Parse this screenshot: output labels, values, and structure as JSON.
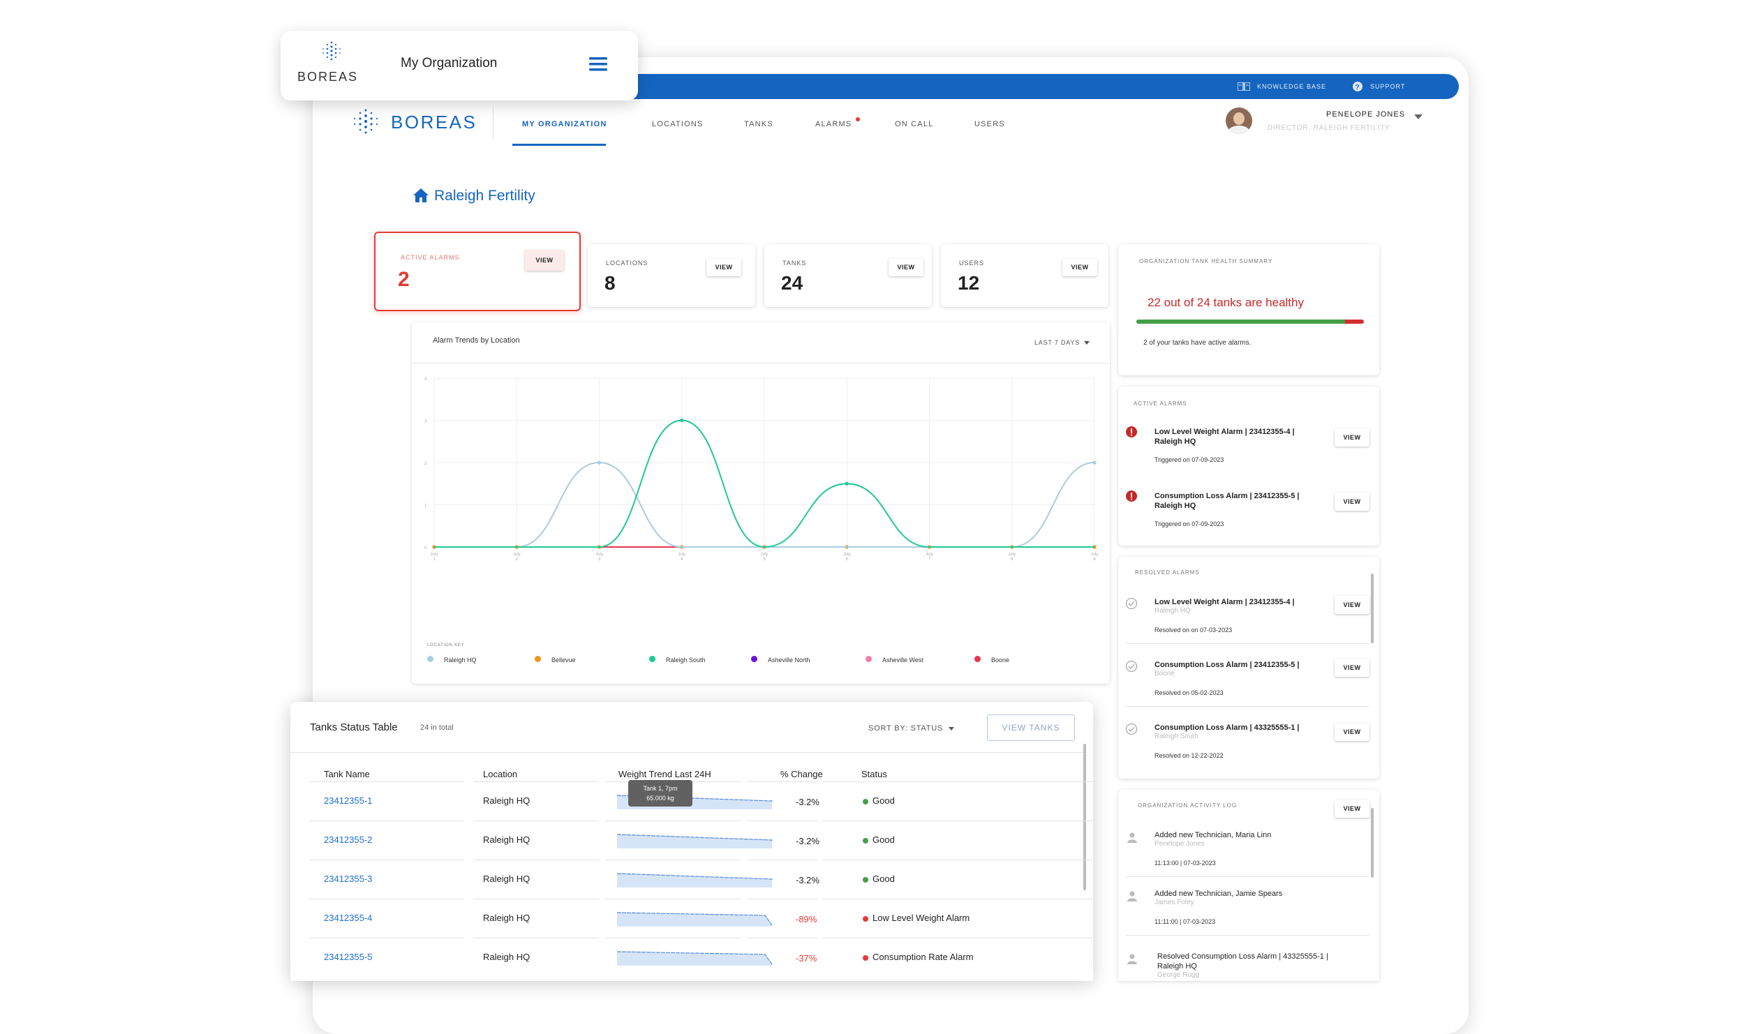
{
  "topbar": {
    "knowledge_base": "KNOWLEDGE BASE",
    "support": "SUPPORT"
  },
  "brand": {
    "logo_text": "BOREAS"
  },
  "mobile": {
    "logo_text": "BOREAS",
    "title": "My Organization"
  },
  "nav": {
    "items": [
      {
        "label": "MY ORGANIZATION"
      },
      {
        "label": "LOCATIONS"
      },
      {
        "label": "TANKS"
      },
      {
        "label": "ALARMS"
      },
      {
        "label": "ON CALL"
      },
      {
        "label": "USERS"
      }
    ]
  },
  "user": {
    "name": "PENELOPE JONES",
    "role": "DIRECTOR, RALEIGH FERTILITY"
  },
  "page": {
    "title": "Raleigh Fertility"
  },
  "stats": {
    "active_alarms": {
      "label": "ACTIVE ALARMS",
      "value": "2",
      "button": "VIEW"
    },
    "locations": {
      "label": "LOCATIONS",
      "value": "8",
      "button": "VIEW"
    },
    "tanks": {
      "label": "TANKS",
      "value": "24",
      "button": "VIEW"
    },
    "users": {
      "label": "USERS",
      "value": "12",
      "button": "VIEW"
    }
  },
  "health": {
    "label": "ORGANIZATION TANK HEALTH SUMMARY",
    "headline": "22 out of 24 tanks are healthy",
    "healthy_fraction": 0.9167,
    "note": "2 of your tanks have active alarms.",
    "colors": {
      "healthy": "#43a047",
      "alarm": "#d32f2f"
    }
  },
  "chart": {
    "title": "Alarm Trends by Location",
    "range_selector": "LAST 7 DAYS",
    "legend_title": "LOCATION KEY",
    "y_ticks": [
      "0",
      "1",
      "2",
      "3",
      "4"
    ],
    "x_ticks": [
      "July 1",
      "July 2",
      "July 3",
      "July 4",
      "July 5",
      "July 6",
      "July 7",
      "July 8",
      "July 9"
    ]
  },
  "chart_data": {
    "type": "line",
    "title": "Alarm Trends by Location",
    "x": [
      "July 1",
      "July 2",
      "July 3",
      "July 4",
      "July 5",
      "July 6",
      "July 7",
      "July 8",
      "July 9"
    ],
    "ylim": [
      0,
      4
    ],
    "grid": true,
    "legend": "bottom",
    "series": [
      {
        "name": "Raleigh HQ",
        "color": "#a8cde0",
        "values": [
          0,
          0,
          2,
          0,
          0,
          0,
          0,
          0,
          2
        ]
      },
      {
        "name": "Bellevue",
        "color": "#f0921e",
        "values": [
          0,
          0,
          0,
          0,
          0,
          0,
          0,
          0,
          0
        ]
      },
      {
        "name": "Raleigh South",
        "color": "#1cc996",
        "values": [
          0,
          0,
          0,
          3,
          0,
          1.5,
          0,
          0,
          0
        ]
      },
      {
        "name": "Asheville North",
        "color": "#6a11e0",
        "values": [
          0,
          0,
          0,
          0,
          0,
          0,
          0,
          0,
          0
        ]
      },
      {
        "name": "Asheville West",
        "color": "#f27fa6",
        "values": [
          0,
          0,
          0,
          0,
          0,
          0,
          0,
          0,
          0
        ]
      },
      {
        "name": "Boone",
        "color": "#e8344e",
        "values": [
          0,
          0,
          0,
          0,
          0,
          0,
          0,
          0,
          0
        ]
      }
    ]
  },
  "active_alarms": {
    "label": "ACTIVE ALARMS",
    "items": [
      {
        "title": "Low Level Weight Alarm | 23412355-4 | Raleigh HQ",
        "meta": "Triggered on 07-09-2023",
        "button": "VIEW"
      },
      {
        "title": "Consumption Loss Alarm | 23412355-5 | Raleigh HQ",
        "meta": "Triggered on 07-09-2023",
        "button": "VIEW"
      }
    ]
  },
  "resolved_alarms": {
    "label": "RESOLVED ALARMS",
    "items": [
      {
        "title": "Low Level Weight Alarm | 23412355-4 |",
        "sub": "Raleigh HQ",
        "meta": "Resolved on on 07-03-2023",
        "button": "VIEW"
      },
      {
        "title": "Consumption Loss Alarm | 23412355-5 |",
        "sub": "Boone",
        "meta": "Resolved on 05-02-2023",
        "button": "VIEW"
      },
      {
        "title": "Consumption Loss Alarm | 43325555-1 |",
        "sub": "Raleigh South",
        "meta": "Resolved on 12-22-2022",
        "button": "VIEW"
      }
    ]
  },
  "activity": {
    "label": "ORGANIZATION ACTIVITY LOG",
    "button": "VIEW",
    "items": [
      {
        "title": "Added new Technician, Maria Linn",
        "sub": "Penelope Jones",
        "meta": "11:13:00 | 07-03-2023"
      },
      {
        "title": "Added new Technician, Jamie Spears",
        "sub": "James Foley",
        "meta": "11:11:00 | 07-03-2023"
      },
      {
        "title": "Resolved Consumption Loss Alarm | 43325555-1 | Raleigh HQ",
        "sub": "George Rugg",
        "meta": ""
      }
    ]
  },
  "tanks_table": {
    "title": "Tanks Status Table",
    "count": "24 in total",
    "sort_label": "SORT BY: STATUS",
    "view_button": "VIEW TANKS",
    "columns": [
      "Tank Name",
      "Location",
      "Weight Trend Last 24H",
      "% Change",
      "Status"
    ],
    "tooltip": {
      "line1": "Tank 1, 7pm",
      "line2": "65.000 kg"
    },
    "rows": [
      {
        "name": "23412355-1",
        "location": "Raleigh HQ",
        "change": "-3.2%",
        "status": "Good",
        "status_color": "#43a047",
        "alert": false
      },
      {
        "name": "23412355-2",
        "location": "Raleigh HQ",
        "change": "-3.2%",
        "status": "Good",
        "status_color": "#43a047",
        "alert": false
      },
      {
        "name": "23412355-3",
        "location": "Raleigh HQ",
        "change": "-3.2%",
        "status": "Good",
        "status_color": "#43a047",
        "alert": false
      },
      {
        "name": "23412355-4",
        "location": "Raleigh HQ",
        "change": "-89%",
        "status": "Low Level Weight Alarm",
        "status_color": "#e53935",
        "alert": true
      },
      {
        "name": "23412355-5",
        "location": "Raleigh HQ",
        "change": "-37%",
        "status": "Consumption Rate Alarm",
        "status_color": "#e53935",
        "alert": true
      }
    ]
  }
}
